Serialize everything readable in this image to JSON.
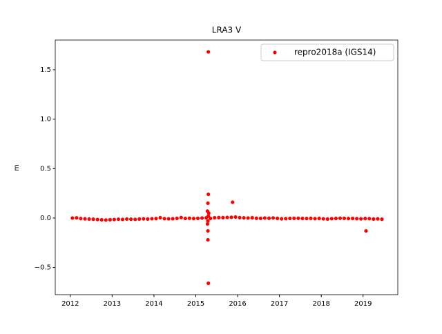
{
  "chart_data": {
    "type": "scatter",
    "title": "LRA3 V",
    "y_label": "m",
    "legend_position": "upper right",
    "series": [
      {
        "name": "repro2018a (IGS14)",
        "color": "#ff0000",
        "x": [
          2012.05,
          2012.15,
          2012.25,
          2012.35,
          2012.45,
          2012.55,
          2012.65,
          2012.75,
          2012.85,
          2012.95,
          2013.05,
          2013.15,
          2013.25,
          2013.35,
          2013.45,
          2013.55,
          2013.65,
          2013.75,
          2013.85,
          2013.95,
          2014.05,
          2014.15,
          2014.25,
          2014.35,
          2014.45,
          2014.55,
          2014.65,
          2014.75,
          2014.85,
          2014.95,
          2015.05,
          2015.15,
          2015.25,
          2015.35,
          2015.45,
          2015.55,
          2015.65,
          2015.75,
          2015.85,
          2015.95,
          2016.05,
          2016.15,
          2016.25,
          2016.35,
          2016.45,
          2016.55,
          2016.65,
          2016.75,
          2016.85,
          2016.95,
          2017.05,
          2017.15,
          2017.25,
          2017.35,
          2017.45,
          2017.55,
          2017.65,
          2017.75,
          2017.85,
          2017.95,
          2018.05,
          2018.15,
          2018.25,
          2018.35,
          2018.45,
          2018.55,
          2018.65,
          2018.75,
          2018.85,
          2018.95,
          2019.05,
          2019.15,
          2019.25,
          2019.35,
          2019.45,
          2015.3,
          2015.3,
          2015.29,
          2015.28,
          2015.31,
          2015.3,
          2015.29,
          2015.28,
          2015.29,
          2015.29,
          2015.3,
          2015.88,
          2019.07
        ],
        "values": [
          0.0,
          0.002,
          -0.005,
          -0.008,
          -0.01,
          -0.012,
          -0.015,
          -0.018,
          -0.02,
          -0.017,
          -0.015,
          -0.012,
          -0.014,
          -0.01,
          -0.012,
          -0.013,
          -0.01,
          -0.008,
          -0.01,
          -0.007,
          -0.005,
          0.003,
          -0.006,
          -0.008,
          -0.007,
          -0.003,
          0.005,
          -0.004,
          -0.002,
          -0.005,
          -0.003,
          0.0,
          0.002,
          -0.004,
          0.003,
          0.005,
          0.004,
          0.006,
          0.008,
          0.01,
          0.004,
          0.002,
          0.0,
          0.003,
          -0.002,
          -0.003,
          0.0,
          -0.002,
          0.001,
          -0.003,
          -0.008,
          -0.006,
          -0.004,
          -0.003,
          -0.002,
          -0.004,
          -0.005,
          -0.003,
          -0.006,
          -0.004,
          -0.008,
          -0.01,
          -0.006,
          -0.004,
          -0.002,
          -0.003,
          -0.005,
          -0.004,
          -0.006,
          -0.008,
          -0.005,
          -0.006,
          -0.01,
          -0.008,
          -0.012,
          1.68,
          0.24,
          0.15,
          0.07,
          0.05,
          0.02,
          -0.03,
          -0.06,
          -0.13,
          -0.22,
          -0.66,
          0.16,
          -0.13
        ]
      }
    ],
    "xlim": [
      2011.64,
      2019.83
    ],
    "ylim": [
      -0.775,
      1.8
    ],
    "xticks": [
      2012,
      2013,
      2014,
      2015,
      2016,
      2017,
      2018,
      2019
    ],
    "yticks": [
      {
        "value": -0.5,
        "label": "−0.5"
      },
      {
        "value": 0,
        "label": "0.0"
      },
      0.5,
      {
        "value": 1,
        "label": "1.0"
      },
      1.5
    ],
    "grid": false
  }
}
